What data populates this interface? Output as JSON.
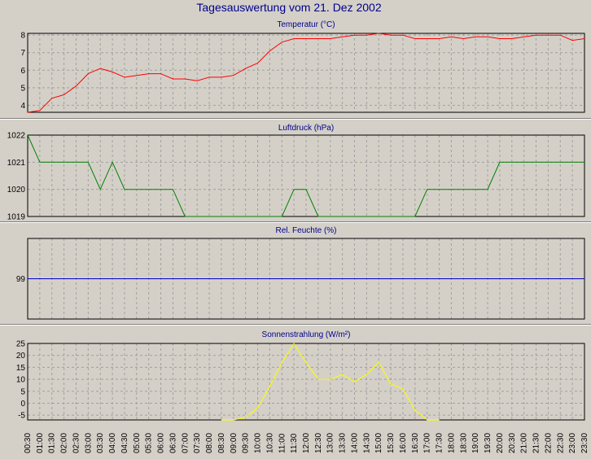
{
  "main_title": "Tagesauswertung vom 21. Dez 2002",
  "x_labels": [
    "00:30",
    "01:00",
    "01:30",
    "02:00",
    "02:30",
    "03:00",
    "03:30",
    "04:00",
    "04:30",
    "05:00",
    "05:30",
    "06:00",
    "06:30",
    "07:00",
    "07:30",
    "08:00",
    "08:30",
    "09:00",
    "09:30",
    "10:00",
    "10:30",
    "11:00",
    "11:30",
    "12:00",
    "12:30",
    "13:00",
    "13:30",
    "14:00",
    "14:30",
    "15:00",
    "15:30",
    "16:00",
    "16:30",
    "17:00",
    "17:30",
    "18:00",
    "18:30",
    "19:00",
    "19:30",
    "20:00",
    "20:30",
    "21:00",
    "21:30",
    "22:00",
    "22:30",
    "23:00",
    "23:30"
  ],
  "chart_data": [
    {
      "type": "line",
      "title": "Temperatur (°C)",
      "color": "#ff0000",
      "ylim": [
        3.6,
        8.1
      ],
      "yticks": [
        4,
        5,
        6,
        7,
        8
      ],
      "grid": true,
      "series": [
        {
          "values": [
            3.6,
            3.7,
            4.4,
            4.6,
            5.1,
            5.8,
            6.1,
            5.9,
            5.6,
            5.7,
            5.8,
            5.8,
            5.5,
            5.5,
            5.4,
            5.6,
            5.6,
            5.7,
            6.1,
            6.4,
            7.1,
            7.6,
            7.8,
            7.8,
            7.8,
            7.8,
            7.9,
            8.0,
            8.0,
            8.1,
            8.0,
            8.0,
            7.8,
            7.8,
            7.8,
            7.9,
            7.8,
            7.9,
            7.9,
            7.8,
            7.8,
            7.9,
            8.0,
            8.0,
            8.0,
            7.7,
            7.8
          ]
        }
      ]
    },
    {
      "type": "line",
      "title": "Luftdruck (hPa)",
      "color": "#008000",
      "ylim": [
        1019,
        1022
      ],
      "yticks": [
        1019,
        1020,
        1021,
        1022
      ],
      "grid": true,
      "series": [
        {
          "values": [
            1022,
            1021,
            1021,
            1021,
            1021,
            1021,
            1020,
            1021,
            1020,
            1020,
            1020,
            1020,
            1020,
            1019,
            1019,
            1019,
            1019,
            1019,
            1019,
            1019,
            1019,
            1019,
            1020,
            1020,
            1019,
            1019,
            1019,
            1019,
            1019,
            1019,
            1019,
            1019,
            1019,
            1020,
            1020,
            1020,
            1020,
            1020,
            1020,
            1021,
            1021,
            1021,
            1021,
            1021,
            1021,
            1021,
            1021
          ]
        }
      ]
    },
    {
      "type": "line",
      "title": "Rel. Feuchte (%)",
      "color": "#0000cd",
      "ylim": [
        98,
        100
      ],
      "yticks": [
        99
      ],
      "grid": true,
      "series": [
        {
          "values": [
            99,
            99,
            99,
            99,
            99,
            99,
            99,
            99,
            99,
            99,
            99,
            99,
            99,
            99,
            99,
            99,
            99,
            99,
            99,
            99,
            99,
            99,
            99,
            99,
            99,
            99,
            99,
            99,
            99,
            99,
            99,
            99,
            99,
            99,
            99,
            99,
            99,
            99,
            99,
            99,
            99,
            99,
            99,
            99,
            99,
            99,
            99
          ]
        }
      ]
    },
    {
      "type": "line",
      "title": "Sonnenstrahlung (W/m²)",
      "color": "#ffff00",
      "ylim": [
        -7,
        25
      ],
      "yticks": [
        -5,
        0,
        5,
        10,
        15,
        20,
        25
      ],
      "grid": true,
      "series": [
        {
          "values": [
            null,
            null,
            null,
            null,
            null,
            null,
            null,
            null,
            null,
            null,
            null,
            null,
            null,
            null,
            null,
            null,
            -7,
            -7,
            -6,
            -2,
            7,
            17,
            25,
            17,
            10,
            10,
            12,
            9,
            12,
            17,
            8,
            6,
            -3,
            -7,
            -7,
            null,
            null,
            null,
            null,
            null,
            null,
            null,
            null,
            null,
            null,
            null,
            null
          ]
        }
      ]
    }
  ]
}
